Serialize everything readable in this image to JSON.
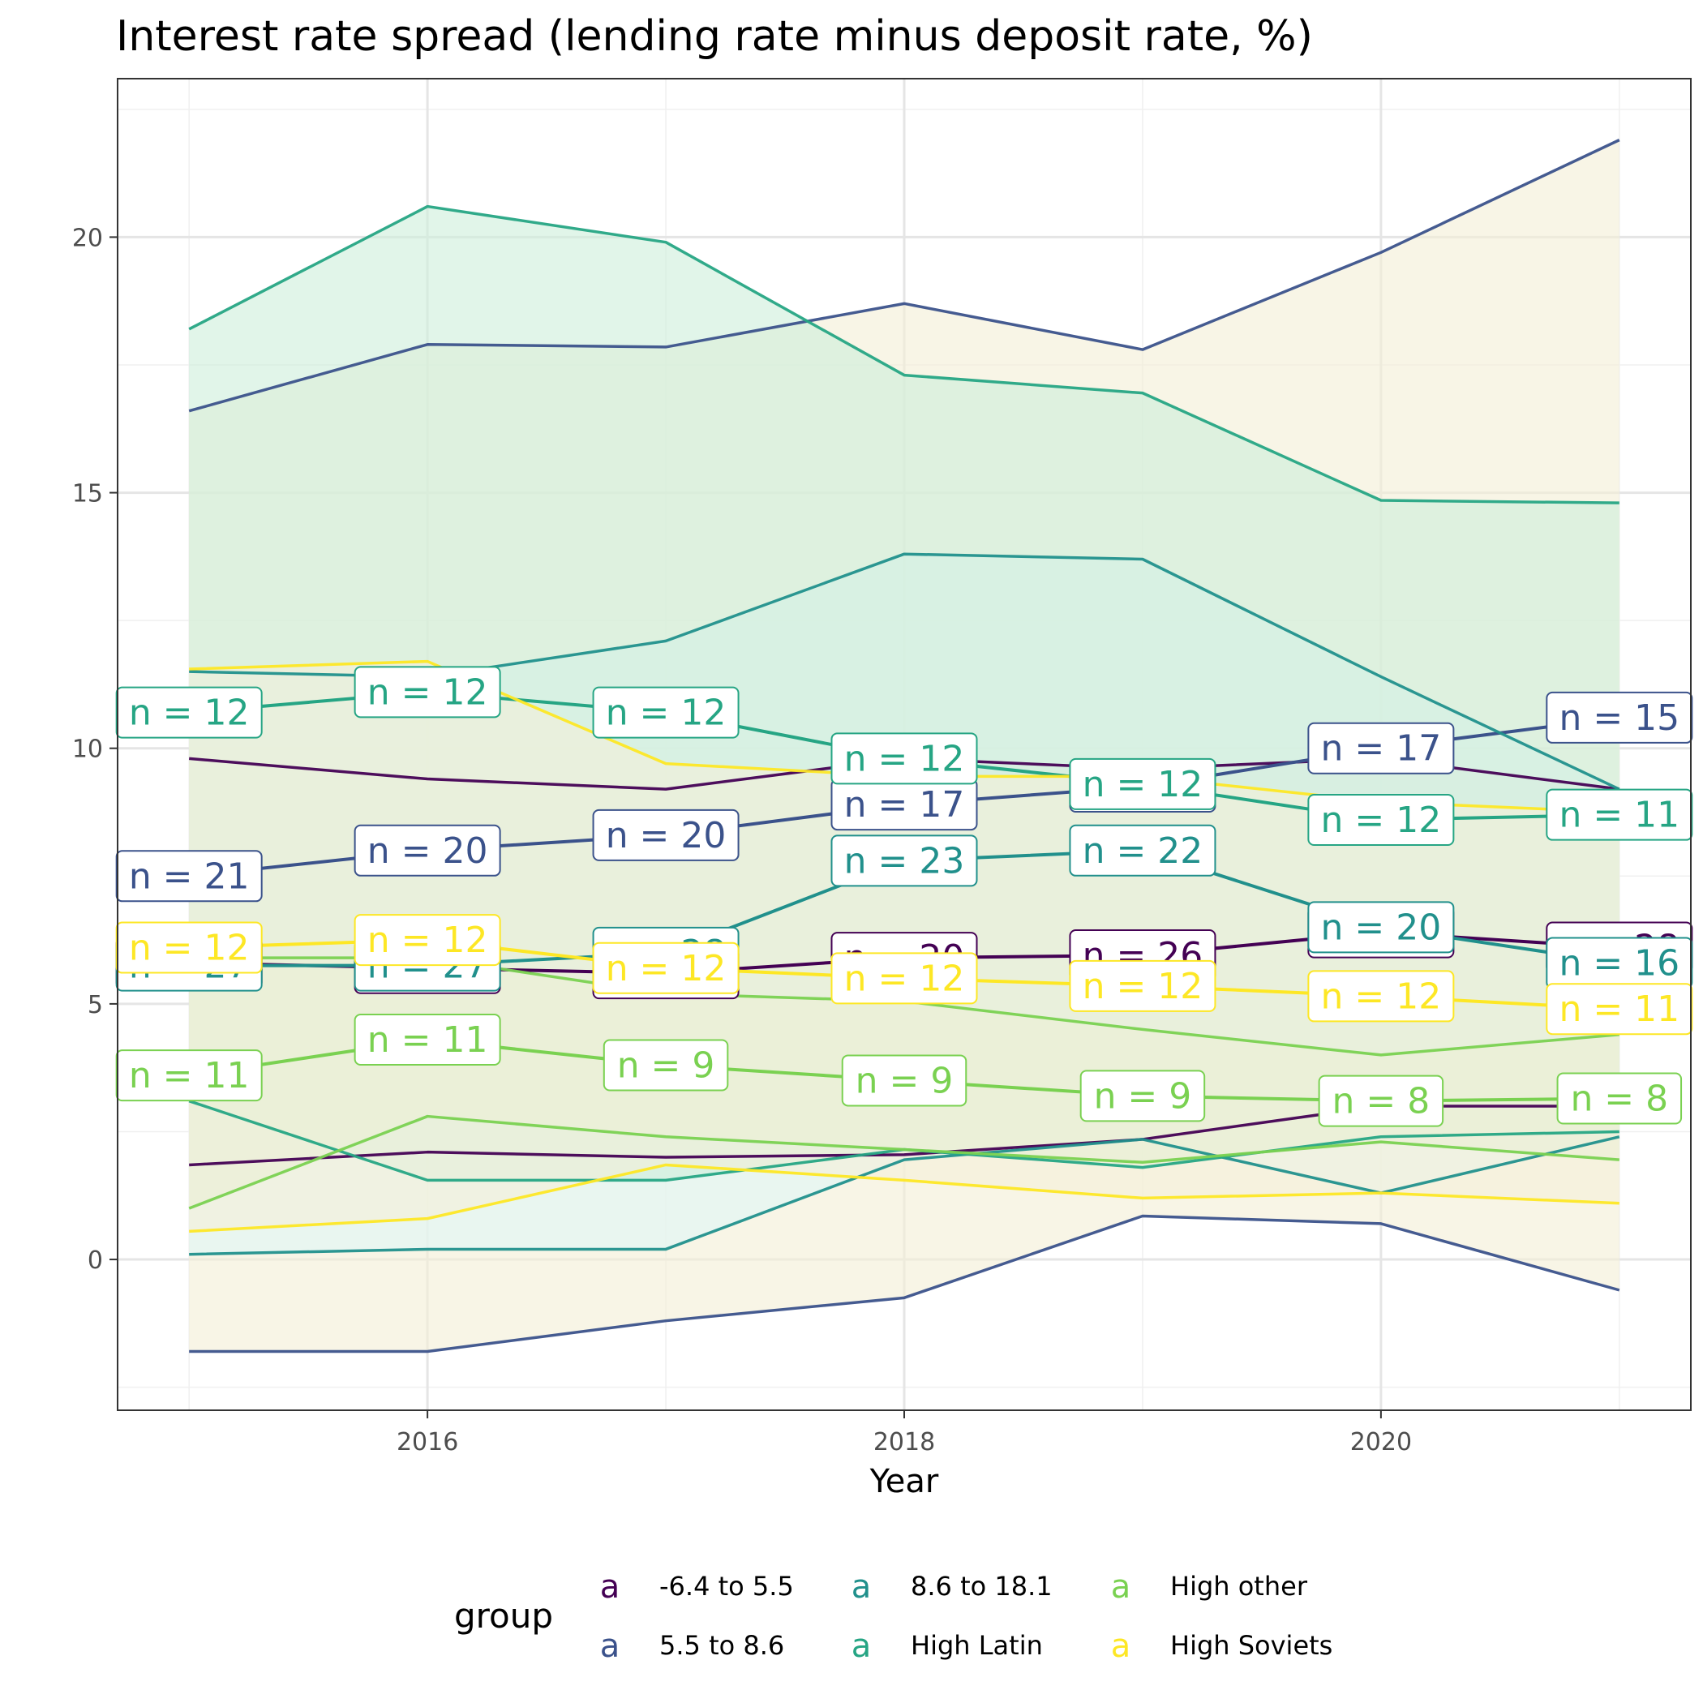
{
  "chart_data": {
    "type": "line",
    "title": "Interest rate spread (lending rate minus deposit rate, %)",
    "xlabel": "Year",
    "ylabel": "",
    "xlim": [
      2014.7,
      2021.3
    ],
    "ylim": [
      -2.95,
      23.1
    ],
    "x_ticks": [
      2016,
      2018,
      2020
    ],
    "y_ticks": [
      0,
      5,
      10,
      15,
      20
    ],
    "grid": true,
    "legend_title": "group",
    "legend_position": "bottom",
    "label_prefix": "n = ",
    "x": [
      2015,
      2016,
      2017,
      2018,
      2019,
      2020,
      2021
    ],
    "series": [
      {
        "name": "-6.4 to 5.5",
        "color": "#440154",
        "fill": "#f4cccc",
        "mean": [
          5.8,
          5.7,
          5.6,
          5.9,
          5.95,
          6.4,
          6.1
        ],
        "lower": [
          1.85,
          2.1,
          2.0,
          2.05,
          2.35,
          3.0,
          3.0
        ],
        "upper": [
          9.8,
          9.4,
          9.2,
          9.8,
          9.6,
          9.8,
          9.2
        ],
        "n": [
          24,
          21,
          23,
          20,
          26,
          28,
          28
        ]
      },
      {
        "name": "5.5 to 8.6",
        "color": "#3b528b",
        "fill": "#f3eed6",
        "mean": [
          7.5,
          8.0,
          8.3,
          8.9,
          9.25,
          10.0,
          10.6
        ],
        "lower": [
          -1.8,
          -1.8,
          -1.2,
          -0.75,
          0.85,
          0.7,
          -0.6
        ],
        "upper": [
          16.6,
          17.9,
          17.85,
          18.7,
          17.8,
          19.7,
          21.9
        ],
        "n": [
          21,
          20,
          20,
          17,
          17,
          17,
          15
        ]
      },
      {
        "name": "8.6 to 18.1",
        "color": "#21908c",
        "fill": "#e0f7f7",
        "mean": [
          5.75,
          5.75,
          6.0,
          7.8,
          8.0,
          6.5,
          5.8
        ],
        "lower": [
          0.1,
          0.2,
          0.2,
          1.95,
          2.35,
          1.3,
          2.4
        ],
        "upper": [
          11.5,
          11.4,
          12.1,
          13.8,
          13.7,
          11.4,
          9.2
        ],
        "n": [
          27,
          27,
          28,
          23,
          22,
          20,
          16
        ]
      },
      {
        "name": "High Latin",
        "color": "#26a584",
        "fill": "#cdeedb",
        "mean": [
          10.7,
          11.1,
          10.7,
          9.8,
          9.3,
          8.6,
          8.7
        ],
        "lower": [
          3.1,
          1.55,
          1.55,
          2.15,
          1.8,
          2.4,
          2.5
        ],
        "upper": [
          18.2,
          20.6,
          19.9,
          17.3,
          16.95,
          14.85,
          14.8
        ],
        "n": [
          12,
          12,
          12,
          12,
          12,
          12,
          11
        ]
      },
      {
        "name": "High other",
        "color": "#7ad151",
        "fill": "#deeed0",
        "mean": [
          3.6,
          4.3,
          3.8,
          3.5,
          3.2,
          3.1,
          3.15
        ],
        "lower": [
          1.0,
          2.8,
          2.4,
          2.15,
          1.9,
          2.3,
          1.95
        ],
        "upper": [
          5.9,
          5.9,
          5.2,
          5.05,
          4.5,
          4.0,
          4.4
        ],
        "n": [
          11,
          11,
          9,
          9,
          9,
          8,
          8
        ]
      },
      {
        "name": "High Soviets",
        "color": "#fde725",
        "fill": "#f5f0d8",
        "mean": [
          6.1,
          6.25,
          5.7,
          5.5,
          5.35,
          5.15,
          4.9
        ],
        "lower": [
          0.55,
          0.8,
          1.85,
          1.55,
          1.2,
          1.3,
          1.1
        ],
        "upper": [
          11.55,
          11.7,
          9.7,
          9.45,
          9.45,
          8.95,
          8.75
        ],
        "n": [
          12,
          12,
          12,
          12,
          12,
          12,
          11
        ]
      }
    ]
  }
}
